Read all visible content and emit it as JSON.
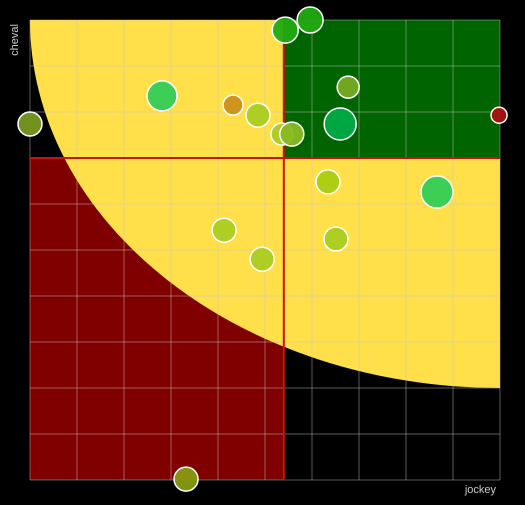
{
  "chart_data": {
    "type": "bubble",
    "x_label": "jockey",
    "y_label": "cheval",
    "xlim": [
      0,
      100
    ],
    "ylim": [
      0,
      100
    ],
    "xticks": [
      0,
      10,
      20,
      30,
      40,
      50,
      60,
      70,
      80,
      90,
      100
    ],
    "yticks": [
      0,
      10,
      20,
      30,
      40,
      50,
      60,
      70,
      80,
      90,
      100
    ],
    "grid": true,
    "zones": {
      "x_threshold": 54,
      "y_threshold": 70,
      "rx": 100,
      "ry": 80,
      "low_color": "#800000",
      "mid_color": "#ffe04a",
      "high_color": "#006400",
      "line_color": "#cc1111"
    },
    "x": [
      54.3,
      59.6,
      67.7,
      28.1,
      43.2,
      48.5,
      53.6,
      55.7,
      66,
      0,
      99.8,
      63.4,
      86.6,
      41.3,
      65.1,
      49.4,
      33.2
    ],
    "values": [
      97.8,
      100,
      85.4,
      83.5,
      81.5,
      79.3,
      75.2,
      75.2,
      77.4,
      77.4,
      79.3,
      64.8,
      62.6,
      54.3,
      52.4,
      48,
      0.2
    ],
    "sizes": [
      13,
      13,
      11,
      15,
      10,
      12,
      11,
      12,
      16,
      12,
      8,
      12,
      16,
      12,
      12,
      12,
      12
    ],
    "colors": [
      "#22aa11",
      "#22aa11",
      "#77aa22",
      "#33cc55",
      "#cc8f1a",
      "#aacc22",
      "#aacc22",
      "#88bb22",
      "#00aa44",
      "#779922",
      "#aa1111",
      "#aacc11",
      "#33cc55",
      "#aacc22",
      "#aacc22",
      "#aacc22",
      "#889911"
    ]
  }
}
